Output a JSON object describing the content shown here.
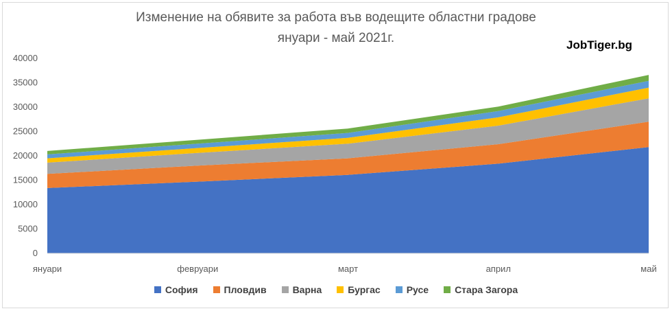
{
  "chart_data": {
    "type": "area",
    "stacked": true,
    "title": "Изменение на обявите за работа във водещите областни градове",
    "subtitle": "януари - май 2021г.",
    "watermark": "JobTiger.bg",
    "categories": [
      "януари",
      "февруари",
      "март",
      "април",
      "май"
    ],
    "ylim": [
      0,
      40000
    ],
    "yticks": [
      0,
      5000,
      10000,
      15000,
      20000,
      25000,
      30000,
      35000,
      40000
    ],
    "grid": false,
    "legend_position": "bottom",
    "series": [
      {
        "name": "София",
        "color": "#4472c4",
        "values": [
          13400,
          14700,
          16100,
          18400,
          21800
        ]
      },
      {
        "name": "Пловдив",
        "color": "#ed7d31",
        "values": [
          2900,
          3300,
          3400,
          4000,
          5200
        ]
      },
      {
        "name": "Варна",
        "color": "#a5a5a5",
        "values": [
          2300,
          2600,
          3000,
          3800,
          4800
        ]
      },
      {
        "name": "Бургас",
        "color": "#ffc000",
        "values": [
          900,
          1000,
          1200,
          1700,
          2200
        ]
      },
      {
        "name": "Русе",
        "color": "#5b9bd5",
        "values": [
          800,
          900,
          1000,
          1300,
          1400
        ]
      },
      {
        "name": "Стара Загора",
        "color": "#70ad47",
        "values": [
          700,
          800,
          900,
          900,
          1200
        ]
      }
    ]
  }
}
